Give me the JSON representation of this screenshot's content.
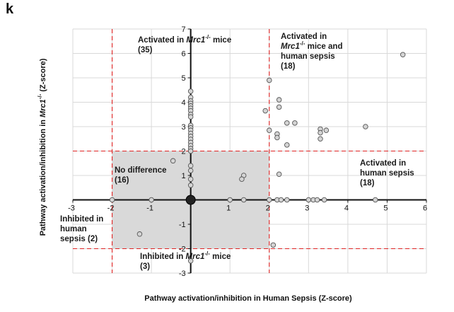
{
  "panel_letter": "k",
  "chart_data": {
    "type": "scatter",
    "xlabel": "Pathway activation/inhibition in Human Sepsis (Z-score)",
    "ylabel_parts": [
      "Pathway activation/inhibition in ",
      "Mrc1",
      "-/-",
      " (Z-score)"
    ],
    "xlim": [
      -3,
      6
    ],
    "ylim": [
      -3,
      7
    ],
    "x_ticks": [
      -3,
      -2,
      -1,
      1,
      2,
      3,
      4,
      5,
      6
    ],
    "y_ticks": [
      -3,
      -2,
      -1,
      1,
      2,
      3,
      4,
      5,
      6,
      7
    ],
    "thresholds": {
      "x": [
        -2,
        2
      ],
      "y": [
        -2,
        2
      ]
    },
    "colors": {
      "threshold": "#e02424",
      "no_diff_region": "#d9d9d9",
      "grid": "#d9d9d9",
      "point_fill": "#d4d4d4",
      "origin_point": "#222222"
    },
    "no_difference_region": {
      "x": [
        -2,
        2
      ],
      "y": [
        -2,
        2
      ]
    },
    "annotations": [
      {
        "id": "act-mrc1",
        "lines": [
          [
            "Activated in ",
            "Mrc1",
            "-/-",
            " mice"
          ],
          [
            "(35)"
          ]
        ]
      },
      {
        "id": "act-both",
        "lines": [
          [
            "Activated in"
          ],
          [
            "Mrc1",
            "-/-",
            " mice and"
          ],
          [
            "human sepsis"
          ],
          [
            "(18)"
          ]
        ]
      },
      {
        "id": "act-human",
        "lines": [
          [
            "Activated in"
          ],
          [
            "human sepsis"
          ],
          [
            "(18)"
          ]
        ]
      },
      {
        "id": "no-diff",
        "lines": [
          [
            "No difference"
          ],
          [
            "(16)"
          ]
        ]
      },
      {
        "id": "inh-human",
        "lines": [
          [
            "Inhibited in"
          ],
          [
            "human"
          ],
          [
            "sepsis (2)"
          ]
        ]
      },
      {
        "id": "inh-mrc1",
        "lines": [
          [
            "Inhibited in ",
            "Mrc1",
            "-/-",
            " mice"
          ],
          [
            "(3)"
          ]
        ]
      }
    ],
    "points": [
      {
        "x": 0,
        "y": 4.45
      },
      {
        "x": 0,
        "y": 4.2
      },
      {
        "x": 0,
        "y": 4.05
      },
      {
        "x": 0,
        "y": 3.95
      },
      {
        "x": 0,
        "y": 3.85
      },
      {
        "x": 0,
        "y": 3.75
      },
      {
        "x": 0,
        "y": 3.65
      },
      {
        "x": 0,
        "y": 3.5
      },
      {
        "x": 0,
        "y": 3.4
      },
      {
        "x": 0,
        "y": 3.05
      },
      {
        "x": 0,
        "y": 2.95
      },
      {
        "x": 0,
        "y": 2.85
      },
      {
        "x": 0,
        "y": 2.72
      },
      {
        "x": 0,
        "y": 2.6
      },
      {
        "x": 0,
        "y": 2.48
      },
      {
        "x": 0,
        "y": 2.35
      },
      {
        "x": 0,
        "y": 2.22
      },
      {
        "x": 0,
        "y": 2.1
      },
      {
        "x": 0,
        "y": 2.0
      },
      {
        "x": 0,
        "y": 1.4
      },
      {
        "x": 0,
        "y": 1.2
      },
      {
        "x": 0,
        "y": 0.85
      },
      {
        "x": 0,
        "y": 0.6
      },
      {
        "x": 0,
        "y": -2.5
      },
      {
        "x": -0.45,
        "y": 1.6
      },
      {
        "x": 1.35,
        "y": 1.0
      },
      {
        "x": 1.3,
        "y": 0.85
      },
      {
        "x": -1.3,
        "y": -1.4
      },
      {
        "x": 0,
        "y": 0,
        "origin": true
      },
      {
        "x": -2.0,
        "y": 0
      },
      {
        "x": -1.0,
        "y": 0
      },
      {
        "x": 1.0,
        "y": 0
      },
      {
        "x": 1.35,
        "y": 0
      },
      {
        "x": 2.0,
        "y": 0
      },
      {
        "x": 2.2,
        "y": 0
      },
      {
        "x": 2.3,
        "y": 0
      },
      {
        "x": 2.45,
        "y": 0
      },
      {
        "x": 3.0,
        "y": 0
      },
      {
        "x": 3.12,
        "y": 0
      },
      {
        "x": 3.22,
        "y": 0
      },
      {
        "x": 3.4,
        "y": 0
      },
      {
        "x": 4.7,
        "y": 0
      },
      {
        "x": 2.0,
        "y": 4.9
      },
      {
        "x": 1.9,
        "y": 3.65
      },
      {
        "x": 2.0,
        "y": 2.85
      },
      {
        "x": 2.25,
        "y": 4.1
      },
      {
        "x": 2.25,
        "y": 3.8
      },
      {
        "x": 2.2,
        "y": 2.7
      },
      {
        "x": 2.2,
        "y": 2.55
      },
      {
        "x": 2.45,
        "y": 3.15
      },
      {
        "x": 2.65,
        "y": 3.15
      },
      {
        "x": 2.45,
        "y": 2.25
      },
      {
        "x": 3.3,
        "y": 2.9
      },
      {
        "x": 3.3,
        "y": 2.75
      },
      {
        "x": 3.3,
        "y": 2.5
      },
      {
        "x": 3.45,
        "y": 2.85
      },
      {
        "x": 4.45,
        "y": 3.0
      },
      {
        "x": 5.4,
        "y": 5.95
      },
      {
        "x": 2.25,
        "y": 1.05
      },
      {
        "x": 2.1,
        "y": -1.85
      }
    ]
  }
}
